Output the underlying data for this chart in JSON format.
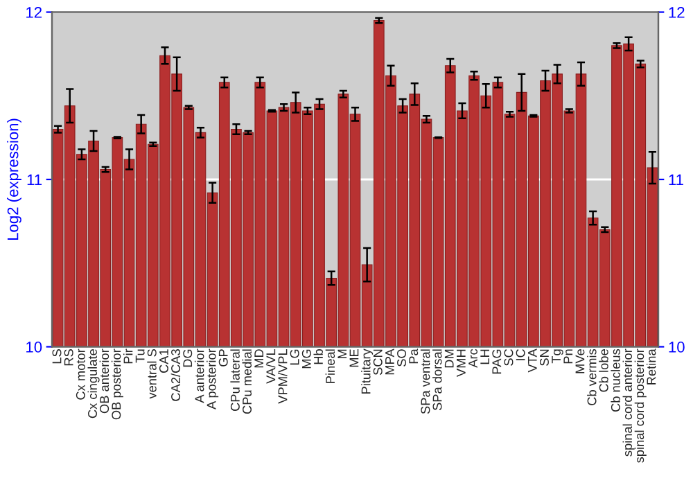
{
  "chart_data": {
    "type": "bar",
    "ylabel": "Log2 (expression)",
    "categories": [
      "LS",
      "RS",
      "Cx motor",
      "Cx cingulate",
      "OB anterior",
      "OB posterior",
      "Pir",
      "Tu",
      "ventral S",
      "CA1",
      "CA2/CA3",
      "DG",
      "A anterior",
      "A posterior",
      "GP",
      "CPu lateral",
      "CPu medial",
      "MD",
      "VA/VL",
      "VPM/VPL",
      "LG",
      "MG",
      "Hb",
      "Pineal",
      "M",
      "ME",
      "Pituitary",
      "SCN",
      "MPA",
      "SO",
      "Pa",
      "SPa ventral",
      "SPa dorsal",
      "DM",
      "VMH",
      "Arc",
      "LH",
      "PAG",
      "SC",
      "IC",
      "VTA",
      "SN",
      "Tg",
      "Pn",
      "MVe",
      "Cb vermis",
      "Cb lobe",
      "Cb nucleus",
      "spinal cord anterior",
      "spinal cord posterior",
      "Retina"
    ],
    "values": [
      11.3,
      11.44,
      11.15,
      11.23,
      11.06,
      11.25,
      11.12,
      11.33,
      11.21,
      11.74,
      11.63,
      11.43,
      11.28,
      10.92,
      11.58,
      11.3,
      11.28,
      11.58,
      11.41,
      11.43,
      11.46,
      11.41,
      11.45,
      10.41,
      11.51,
      11.39,
      10.49,
      11.95,
      11.62,
      11.44,
      11.51,
      11.36,
      11.25,
      11.68,
      11.41,
      11.62,
      11.5,
      11.58,
      11.39,
      11.52,
      11.38,
      11.59,
      11.63,
      11.41,
      11.63,
      10.77,
      10.7,
      11.8,
      11.81,
      11.69,
      11.07
    ],
    "errors": [
      0.02,
      0.1,
      0.03,
      0.06,
      0.015,
      0.005,
      0.06,
      0.055,
      0.01,
      0.05,
      0.1,
      0.01,
      0.03,
      0.06,
      0.03,
      0.03,
      0.01,
      0.03,
      0.005,
      0.02,
      0.06,
      0.02,
      0.03,
      0.04,
      0.02,
      0.04,
      0.1,
      0.015,
      0.06,
      0.04,
      0.065,
      0.02,
      0.003,
      0.04,
      0.045,
      0.025,
      0.07,
      0.03,
      0.015,
      0.11,
      0.005,
      0.06,
      0.055,
      0.01,
      0.07,
      0.04,
      0.015,
      0.015,
      0.04,
      0.02,
      0.095
    ],
    "color": "#b83232",
    "ylim": [
      10,
      12
    ],
    "yticks": [
      10,
      11,
      12
    ],
    "y2lim": [
      10,
      12
    ],
    "y2ticks": [
      10,
      11,
      12
    ],
    "grid": "y"
  }
}
